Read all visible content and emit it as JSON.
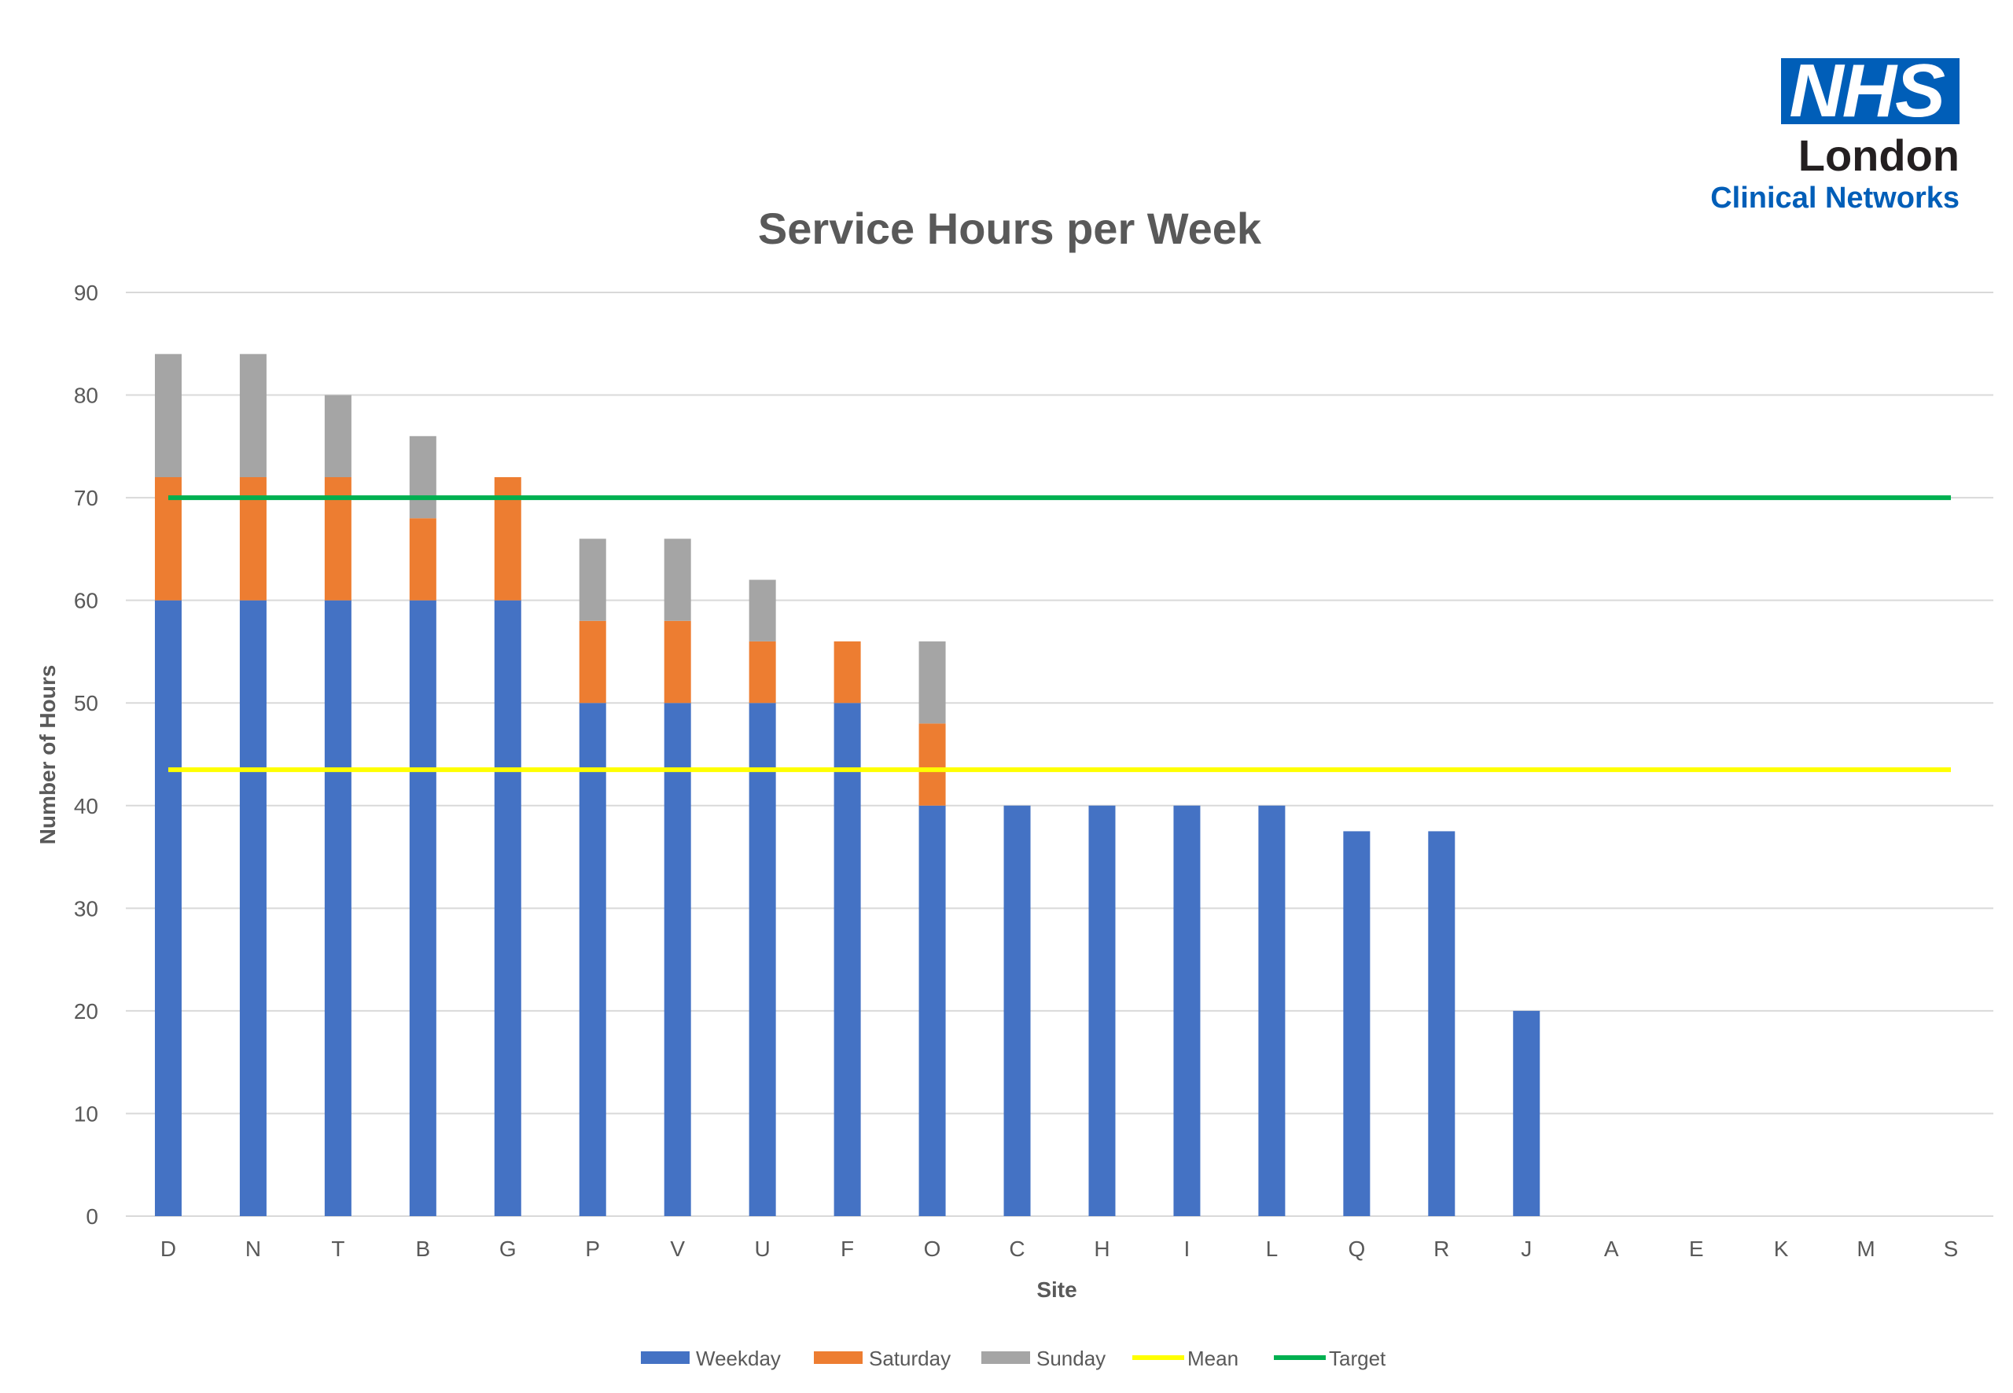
{
  "logo": {
    "brand": "NHS",
    "line1": "London",
    "line2": "Clinical Networks"
  },
  "chart_data": {
    "type": "bar",
    "stacked": true,
    "title": "Service Hours per Week",
    "xlabel": "Site",
    "ylabel": "Number of Hours",
    "ylim": [
      0,
      90
    ],
    "yticks": [
      0,
      10,
      20,
      30,
      40,
      50,
      60,
      70,
      80,
      90
    ],
    "grid": true,
    "legend_position": "bottom",
    "categories": [
      "D",
      "N",
      "T",
      "B",
      "G",
      "P",
      "V",
      "U",
      "F",
      "O",
      "C",
      "H",
      "I",
      "L",
      "Q",
      "R",
      "J",
      "A",
      "E",
      "K",
      "M",
      "S"
    ],
    "series": [
      {
        "name": "Weekday",
        "color": "#4472c4",
        "values": [
          60,
          60,
          60,
          60,
          60,
          50,
          50,
          50,
          50,
          40,
          40,
          40,
          40,
          40,
          37.5,
          37.5,
          20,
          0,
          0,
          0,
          0,
          0
        ]
      },
      {
        "name": "Saturday",
        "color": "#ed7d31",
        "values": [
          12,
          12,
          12,
          8,
          12,
          8,
          8,
          6,
          6,
          8,
          0,
          0,
          0,
          0,
          0,
          0,
          0,
          0,
          0,
          0,
          0,
          0
        ]
      },
      {
        "name": "Sunday",
        "color": "#a5a5a5",
        "values": [
          12,
          12,
          8,
          8,
          0,
          8,
          8,
          6,
          0,
          8,
          0,
          0,
          0,
          0,
          0,
          0,
          0,
          0,
          0,
          0,
          0,
          0
        ]
      }
    ],
    "lines": [
      {
        "name": "Mean",
        "color": "#ffff00",
        "value": 43.5
      },
      {
        "name": "Target",
        "color": "#00b050",
        "value": 70
      }
    ]
  }
}
